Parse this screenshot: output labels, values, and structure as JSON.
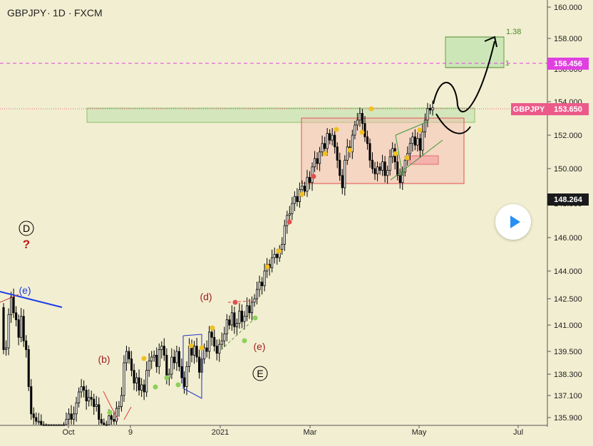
{
  "header": {
    "symbol": "GBPJPY",
    "interval": "1D",
    "exchange": "FXCM",
    "sep": "·"
  },
  "colors": {
    "bg": "#f2eed1",
    "up": "#ffffff",
    "down": "#000000",
    "wick": "#000000",
    "axis": "#555555",
    "magenta": "#e040e0",
    "priceTag": "#ec5a8a",
    "green_zone": "#c9e4b4",
    "red_box": "#f6b8b0",
    "target": "#6b9e4a"
  },
  "chart_data": {
    "type": "candlestick",
    "y_ticks": [
      135.9,
      137.1,
      138.3,
      139.5,
      141.0,
      142.5,
      144.0,
      146.0,
      148.0,
      150.0,
      152.0,
      154.0,
      156.0,
      158.0,
      160.0
    ],
    "x_ticks": [
      "Oct",
      "9",
      "2021",
      "Mar",
      "May",
      "Jul"
    ],
    "price_labels": [
      {
        "text": "156.456",
        "value": 156.456
      },
      {
        "label": "GBPJPY",
        "text": "153.650",
        "value": 153.65
      },
      {
        "text": "148.264",
        "value": 148.264
      }
    ],
    "wave_labels": [
      "D",
      "?",
      "(e)",
      "(b)",
      "(d)",
      "(e)",
      "E"
    ],
    "fib_labels": [
      "1.38",
      "1"
    ],
    "candles": [
      [
        142.0,
        139.6
      ],
      [
        139.6,
        139.7
      ],
      [
        139.7,
        141.6
      ],
      [
        141.6,
        142.6
      ],
      [
        142.6,
        141.7
      ],
      [
        141.7,
        141.3
      ],
      [
        141.3,
        140.3
      ],
      [
        140.3,
        141.5
      ],
      [
        141.5,
        140.1
      ],
      [
        140.1,
        139.6
      ],
      [
        139.6,
        137.6
      ],
      [
        137.6,
        136.1
      ],
      [
        136.1,
        135.9
      ],
      [
        135.9,
        135.7
      ],
      [
        135.7,
        135.7
      ],
      [
        135.7,
        135.4
      ],
      [
        135.4,
        135.1
      ],
      [
        135.1,
        134.9
      ],
      [
        134.9,
        134.5
      ],
      [
        134.5,
        134.4
      ],
      [
        134.4,
        134.5
      ],
      [
        134.5,
        134.5
      ],
      [
        134.5,
        134.7
      ],
      [
        134.7,
        135.1
      ],
      [
        135.1,
        135.2
      ],
      [
        135.2,
        135.8
      ],
      [
        135.8,
        136.1
      ],
      [
        136.1,
        135.8
      ],
      [
        135.8,
        136.1
      ],
      [
        136.1,
        136.7
      ],
      [
        136.7,
        137.3
      ],
      [
        137.3,
        137.6
      ],
      [
        137.6,
        137.4
      ],
      [
        137.4,
        136.8
      ],
      [
        136.8,
        137.0
      ],
      [
        137.0,
        136.9
      ],
      [
        136.9,
        136.5
      ],
      [
        136.5,
        136.6
      ],
      [
        136.6,
        135.8
      ],
      [
        135.8,
        135.6
      ],
      [
        135.6,
        135.3
      ],
      [
        135.3,
        135.2
      ],
      [
        135.2,
        136.0
      ],
      [
        136.0,
        135.8
      ],
      [
        135.8,
        135.7
      ],
      [
        135.7,
        136.4
      ],
      [
        136.4,
        136.5
      ],
      [
        136.5,
        137.1
      ],
      [
        137.1,
        138.9
      ],
      [
        138.9,
        139.5
      ],
      [
        139.5,
        139.1
      ],
      [
        139.1,
        138.5
      ],
      [
        138.5,
        137.8
      ],
      [
        137.8,
        138.1
      ],
      [
        138.1,
        137.4
      ],
      [
        137.4,
        137.7
      ],
      [
        137.7,
        137.3
      ],
      [
        137.3,
        138.5
      ],
      [
        138.5,
        139.0
      ],
      [
        139.0,
        139.2
      ],
      [
        139.2,
        139.3
      ],
      [
        139.3,
        138.7
      ],
      [
        138.7,
        139.6
      ],
      [
        139.6,
        139.8
      ],
      [
        139.8,
        139.3
      ],
      [
        139.3,
        138.1
      ],
      [
        138.1,
        138.3
      ],
      [
        138.3,
        139.2
      ],
      [
        139.2,
        138.9
      ],
      [
        138.9,
        139.5
      ],
      [
        139.5,
        138.7
      ],
      [
        138.7,
        138.1
      ],
      [
        138.1,
        137.6
      ],
      [
        137.6,
        138.7
      ],
      [
        138.7,
        139.8
      ],
      [
        139.8,
        139.3
      ],
      [
        139.3,
        139.8
      ],
      [
        139.8,
        139.2
      ],
      [
        139.2,
        138.4
      ],
      [
        138.4,
        139.1
      ],
      [
        139.1,
        139.7
      ],
      [
        139.7,
        139.5
      ],
      [
        139.5,
        140.6
      ],
      [
        140.6,
        140.3
      ],
      [
        140.3,
        139.8
      ],
      [
        139.8,
        139.4
      ],
      [
        139.4,
        139.9
      ],
      [
        139.9,
        140.1
      ],
      [
        140.1,
        140.5
      ],
      [
        140.5,
        141.3
      ],
      [
        141.3,
        141.0
      ],
      [
        141.0,
        141.7
      ],
      [
        141.7,
        140.9
      ],
      [
        140.9,
        141.1
      ],
      [
        141.1,
        141.8
      ],
      [
        141.8,
        141.2
      ],
      [
        141.2,
        141.5
      ],
      [
        141.5,
        142.1
      ],
      [
        142.1,
        141.7
      ],
      [
        141.7,
        142.3
      ],
      [
        142.3,
        142.5
      ],
      [
        142.5,
        143.0
      ],
      [
        143.0,
        143.4
      ],
      [
        143.4,
        143.2
      ],
      [
        143.2,
        144.0
      ],
      [
        144.0,
        144.4
      ],
      [
        144.4,
        144.2
      ],
      [
        144.2,
        144.8
      ],
      [
        144.8,
        145.0
      ],
      [
        145.0,
        144.8
      ],
      [
        144.8,
        145.3
      ],
      [
        145.3,
        145.6
      ],
      [
        145.6,
        146.7
      ],
      [
        146.7,
        147.3
      ],
      [
        147.3,
        147.4
      ],
      [
        147.4,
        148.0
      ],
      [
        148.0,
        148.4
      ],
      [
        148.4,
        148.1
      ],
      [
        148.1,
        148.8
      ],
      [
        148.8,
        149.0
      ],
      [
        149.0,
        148.7
      ],
      [
        148.7,
        149.5
      ],
      [
        149.5,
        149.2
      ],
      [
        149.2,
        150.1
      ],
      [
        150.1,
        150.6
      ],
      [
        150.6,
        150.3
      ],
      [
        150.3,
        151.0
      ],
      [
        151.0,
        151.5
      ],
      [
        151.5,
        151.2
      ],
      [
        151.2,
        152.1
      ],
      [
        152.1,
        151.7
      ],
      [
        151.7,
        152.0
      ],
      [
        152.0,
        151.3
      ],
      [
        151.3,
        150.5
      ],
      [
        150.5,
        149.6
      ],
      [
        149.6,
        148.9
      ],
      [
        148.9,
        150.5
      ],
      [
        150.5,
        151.3
      ],
      [
        151.3,
        151.0
      ],
      [
        151.0,
        152.0
      ],
      [
        152.0,
        152.6
      ],
      [
        152.6,
        152.9
      ],
      [
        152.9,
        153.3
      ],
      [
        153.3,
        152.7
      ],
      [
        152.7,
        151.9
      ],
      [
        151.9,
        151.5
      ],
      [
        151.5,
        150.5
      ],
      [
        150.5,
        150.0
      ],
      [
        150.0,
        149.7
      ],
      [
        149.7,
        150.1
      ],
      [
        150.1,
        149.9
      ],
      [
        149.9,
        150.4
      ],
      [
        150.4,
        149.6
      ],
      [
        149.6,
        149.9
      ],
      [
        149.9,
        150.7
      ],
      [
        150.7,
        151.2
      ],
      [
        151.2,
        150.4
      ],
      [
        150.4,
        149.6
      ],
      [
        149.6,
        149.2
      ],
      [
        149.2,
        149.8
      ],
      [
        149.8,
        150.5
      ],
      [
        150.5,
        150.9
      ],
      [
        150.9,
        151.5
      ],
      [
        151.5,
        151.9
      ],
      [
        151.9,
        151.4
      ],
      [
        151.4,
        151.8
      ],
      [
        151.8,
        151.1
      ],
      [
        151.1,
        152.2
      ],
      [
        152.2,
        152.9
      ],
      [
        152.9,
        153.6
      ],
      [
        153.6,
        153.5
      ],
      [
        153.5,
        153.65
      ]
    ]
  }
}
